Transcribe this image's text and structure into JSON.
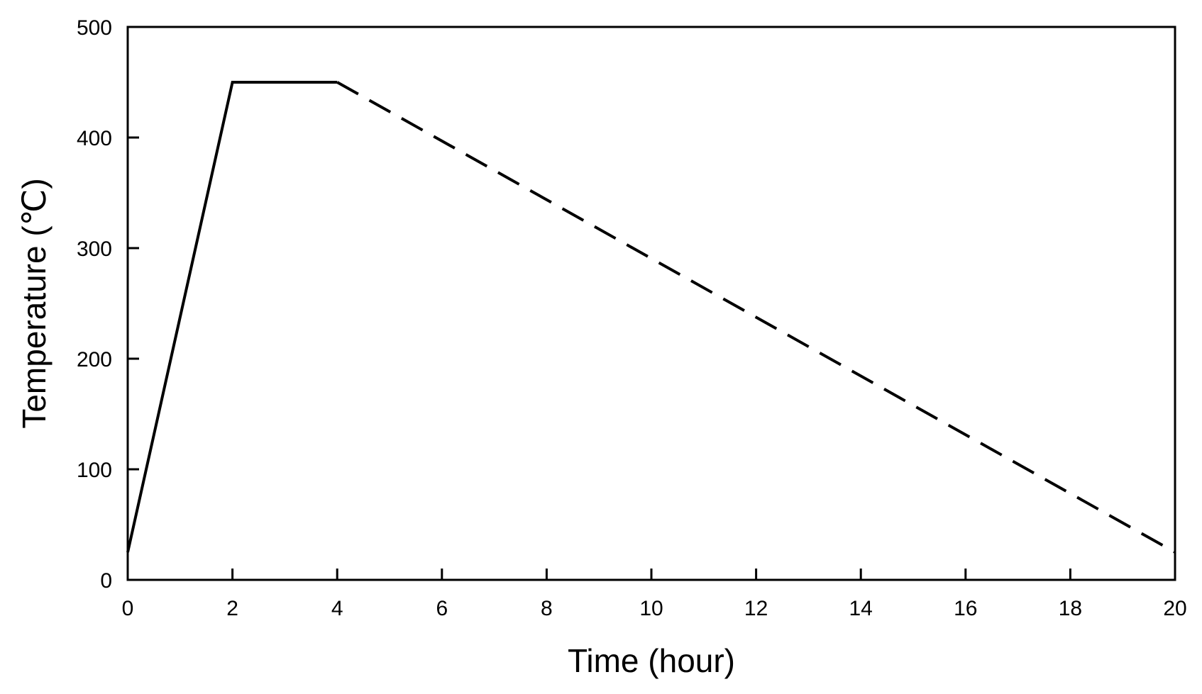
{
  "chart_data": {
    "type": "line",
    "xlabel": "Time (hour)",
    "ylabel": "Temperature (℃)",
    "xlim": [
      0,
      20
    ],
    "ylim": [
      0,
      500
    ],
    "xticks": [
      0,
      2,
      4,
      6,
      8,
      10,
      12,
      14,
      16,
      18,
      20
    ],
    "yticks": [
      0,
      100,
      200,
      300,
      400,
      500
    ],
    "grid": false,
    "series": [
      {
        "style": "solid",
        "color": "#000000",
        "x": [
          0,
          2,
          4
        ],
        "y": [
          25,
          450,
          450
        ]
      },
      {
        "style": "dashed",
        "color": "#000000",
        "x": [
          4,
          20
        ],
        "y": [
          450,
          25
        ]
      }
    ]
  }
}
